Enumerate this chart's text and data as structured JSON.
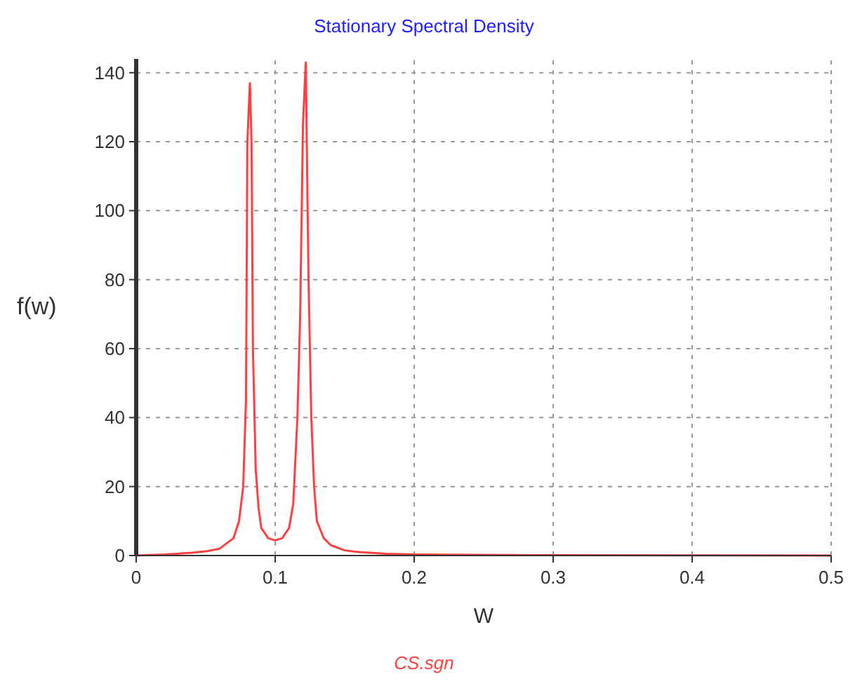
{
  "chart_data": {
    "type": "line",
    "title": "Stationary Spectral Density",
    "xlabel": "W",
    "ylabel": "f(w)",
    "xlim": [
      0,
      0.5
    ],
    "xticks": [
      0,
      0.1,
      0.2,
      0.3,
      0.4,
      0.5
    ],
    "ylim": [
      0,
      144
    ],
    "yticks": [
      0,
      20,
      40,
      60,
      80,
      100,
      120,
      140
    ],
    "grid": true,
    "legend": "bottom",
    "marker": "none",
    "line_style": "solid",
    "series": [
      {
        "name": "CS.sgn",
        "color": "#ff4040",
        "x": [
          0,
          0.02,
          0.04,
          0.05,
          0.06,
          0.07,
          0.074,
          0.077,
          0.079,
          0.08,
          0.0818,
          0.083,
          0.084,
          0.086,
          0.088,
          0.09,
          0.095,
          0.1,
          0.105,
          0.11,
          0.113,
          0.116,
          0.118,
          0.12,
          0.122,
          0.124,
          0.126,
          0.128,
          0.13,
          0.135,
          0.14,
          0.15,
          0.16,
          0.18,
          0.2,
          0.3,
          0.4,
          0.5
        ],
        "values": [
          0,
          0.3,
          0.8,
          1.2,
          2,
          5,
          10,
          20,
          45,
          120,
          137,
          120,
          60,
          25,
          14,
          8,
          5,
          4.4,
          5,
          8,
          15,
          40,
          70,
          125,
          143,
          80,
          40,
          20,
          10,
          5,
          3,
          1.5,
          1,
          0.5,
          0.3,
          0.1,
          0.05,
          0
        ]
      }
    ]
  }
}
